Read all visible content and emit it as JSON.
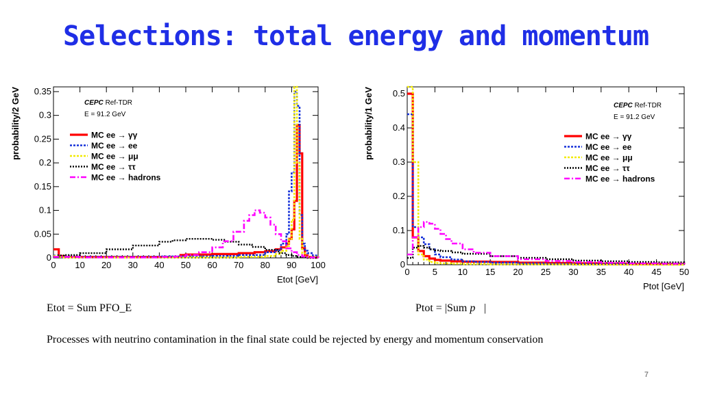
{
  "slide": {
    "title": "Selections: total energy and momentum",
    "caption_left": "Etot = Sum PFO_E",
    "caption_right_prefix": "Ptot = |Sum ",
    "caption_right_vec": "p⃗",
    "caption_right_suffix": "|",
    "note": "Processes with neutrino contamination in the final state could be rejected by energy and momentum conservation",
    "page_number": "7"
  },
  "chart_data": [
    {
      "type": "line",
      "title": "",
      "xlabel": "Etot [GeV]",
      "ylabel": "probability/2 GeV",
      "xlim": [
        0,
        100
      ],
      "ylim": [
        0,
        0.36
      ],
      "xticks": [
        "0",
        "10",
        "20",
        "30",
        "40",
        "50",
        "60",
        "70",
        "80",
        "90",
        "100"
      ],
      "yticks": [
        "0",
        "0.05",
        "0.1",
        "0.15",
        "0.2",
        "0.25",
        "0.3",
        "0.35"
      ],
      "ytick_values": [
        0,
        0.05,
        0.1,
        0.15,
        0.2,
        0.25,
        0.3,
        0.35
      ],
      "legend_position": "top-left",
      "annotation_lines": [
        {
          "prefix": "CEPC",
          "suffix": " Ref-TDR"
        },
        {
          "prefix": "",
          "suffix": "E = 91.2 GeV"
        }
      ],
      "series": [
        {
          "name": "MC ee → γγ",
          "color": "#ff0000",
          "dash": "",
          "width": 3.2,
          "x": [
            0,
            2,
            4,
            10,
            20,
            30,
            40,
            46,
            48,
            50,
            60,
            70,
            76,
            80,
            84,
            86,
            88,
            89,
            90,
            91,
            92,
            93,
            94,
            95,
            96,
            98,
            100
          ],
          "y": [
            0.018,
            0.004,
            0.002,
            0.002,
            0.002,
            0.002,
            0.002,
            0.002,
            0.006,
            0.007,
            0.008,
            0.01,
            0.012,
            0.014,
            0.018,
            0.022,
            0.03,
            0.04,
            0.06,
            0.12,
            0.28,
            0.22,
            0.02,
            0.005,
            0.002,
            0.001,
            0.0
          ]
        },
        {
          "name": "MC ee → ee",
          "color": "#1530d8",
          "dash": "3,2",
          "width": 2.6,
          "x": [
            0,
            2,
            4,
            10,
            20,
            30,
            40,
            50,
            60,
            70,
            80,
            84,
            86,
            88,
            89,
            90,
            91,
            92,
            93,
            94,
            95,
            96,
            98,
            100
          ],
          "y": [
            0.005,
            0.003,
            0.002,
            0.002,
            0.002,
            0.002,
            0.003,
            0.003,
            0.004,
            0.006,
            0.012,
            0.016,
            0.03,
            0.05,
            0.14,
            0.18,
            0.35,
            0.32,
            0.09,
            0.03,
            0.015,
            0.01,
            0.005,
            0.002
          ]
        },
        {
          "name": "MC ee → μμ",
          "color": "#f2ea00",
          "dash": "3,2",
          "width": 2.6,
          "x": [
            0,
            2,
            4,
            10,
            20,
            30,
            40,
            50,
            60,
            70,
            80,
            84,
            86,
            88,
            89,
            90,
            91,
            92,
            93,
            94,
            95,
            96,
            100
          ],
          "y": [
            0.004,
            0.002,
            0.001,
            0.001,
            0.001,
            0.001,
            0.001,
            0.001,
            0.001,
            0.002,
            0.004,
            0.008,
            0.015,
            0.025,
            0.04,
            0.08,
            0.36,
            0.2,
            0.04,
            0.01,
            0.003,
            0.002,
            0.0
          ]
        },
        {
          "name": "MC ee → ττ",
          "color": "#000000",
          "dash": "2,2",
          "width": 2.4,
          "x": [
            0,
            2,
            4,
            10,
            20,
            30,
            40,
            45,
            50,
            55,
            60,
            65,
            70,
            75,
            80,
            85,
            88,
            90,
            92,
            94,
            96,
            100
          ],
          "y": [
            0.002,
            0.005,
            0.006,
            0.01,
            0.018,
            0.026,
            0.034,
            0.037,
            0.04,
            0.04,
            0.038,
            0.034,
            0.028,
            0.023,
            0.017,
            0.01,
            0.006,
            0.004,
            0.002,
            0.001,
            0.0,
            0.0
          ]
        },
        {
          "name": "MC ee → hadrons",
          "color": "#ff00ff",
          "dash": "8,3,2,3",
          "width": 2.6,
          "x": [
            0,
            10,
            20,
            30,
            40,
            46,
            50,
            55,
            60,
            64,
            68,
            72,
            74,
            76,
            78,
            80,
            82,
            84,
            86,
            88,
            90,
            92,
            94,
            96,
            100
          ],
          "y": [
            0.002,
            0.001,
            0.001,
            0.001,
            0.002,
            0.003,
            0.006,
            0.012,
            0.022,
            0.035,
            0.055,
            0.078,
            0.09,
            0.1,
            0.095,
            0.085,
            0.07,
            0.05,
            0.035,
            0.02,
            0.012,
            0.006,
            0.003,
            0.001,
            0.0
          ]
        }
      ]
    },
    {
      "type": "line",
      "title": "",
      "xlabel": "Ptot [GeV]",
      "ylabel": "probability/1 GeV",
      "xlim": [
        0,
        50
      ],
      "ylim": [
        0,
        0.52
      ],
      "xticks": [
        "0",
        "5",
        "10",
        "15",
        "20",
        "25",
        "30",
        "35",
        "40",
        "45",
        "50"
      ],
      "yticks": [
        "0",
        "0.1",
        "0.2",
        "0.3",
        "0.4",
        "0.5"
      ],
      "ytick_values": [
        0,
        0.1,
        0.2,
        0.3,
        0.4,
        0.5
      ],
      "legend_position": "top-right",
      "annotation_lines": [
        {
          "prefix": "CEPC",
          "suffix": " Ref-TDR"
        },
        {
          "prefix": "",
          "suffix": "E = 91.2 GeV"
        }
      ],
      "series": [
        {
          "name": "MC ee → γγ",
          "color": "#ff0000",
          "dash": "",
          "width": 3.2,
          "x": [
            0,
            1,
            2,
            3,
            4,
            5,
            6,
            8,
            10,
            15,
            20,
            25,
            30,
            35,
            40,
            45,
            50
          ],
          "y": [
            0.5,
            0.08,
            0.04,
            0.025,
            0.018,
            0.014,
            0.012,
            0.01,
            0.009,
            0.008,
            0.006,
            0.005,
            0.004,
            0.003,
            0.002,
            0.002,
            0.001
          ]
        },
        {
          "name": "MC ee → ee",
          "color": "#1530d8",
          "dash": "3,2",
          "width": 2.6,
          "x": [
            0,
            1,
            2,
            3,
            4,
            5,
            6,
            8,
            10,
            12,
            15,
            20,
            25,
            30,
            40,
            50
          ],
          "y": [
            0.44,
            0.11,
            0.08,
            0.06,
            0.045,
            0.03,
            0.022,
            0.015,
            0.01,
            0.008,
            0.006,
            0.004,
            0.003,
            0.002,
            0.001,
            0.0
          ]
        },
        {
          "name": "MC ee → μμ",
          "color": "#f2ea00",
          "dash": "3,2",
          "width": 2.6,
          "x": [
            0,
            1,
            2,
            3,
            4,
            5,
            6,
            8,
            10,
            15,
            20,
            30,
            50
          ],
          "y": [
            0.52,
            0.3,
            0.03,
            0.015,
            0.008,
            0.005,
            0.004,
            0.003,
            0.002,
            0.001,
            0.001,
            0.0,
            0.0
          ]
        },
        {
          "name": "MC ee → ττ",
          "color": "#000000",
          "dash": "2,2",
          "width": 2.4,
          "x": [
            0,
            1,
            2,
            3,
            4,
            5,
            6,
            8,
            10,
            15,
            20,
            25,
            30,
            35,
            40,
            45,
            50
          ],
          "y": [
            0.02,
            0.05,
            0.055,
            0.05,
            0.045,
            0.042,
            0.04,
            0.036,
            0.032,
            0.025,
            0.02,
            0.016,
            0.012,
            0.01,
            0.008,
            0.007,
            0.006
          ]
        },
        {
          "name": "MC ee → hadrons",
          "color": "#ff00ff",
          "dash": "8,3,2,3",
          "width": 2.6,
          "x": [
            0,
            1,
            2,
            3,
            4,
            5,
            6,
            7,
            8,
            10,
            12,
            15,
            20,
            25,
            30,
            35,
            40,
            45,
            50
          ],
          "y": [
            0.03,
            0.08,
            0.11,
            0.125,
            0.12,
            0.105,
            0.09,
            0.075,
            0.062,
            0.045,
            0.035,
            0.025,
            0.016,
            0.011,
            0.008,
            0.006,
            0.004,
            0.003,
            0.002
          ]
        }
      ]
    }
  ]
}
